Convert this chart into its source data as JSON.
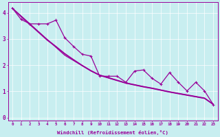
{
  "xlabel": "Windchill (Refroidissement éolien,°C)",
  "bg_color": "#c8eef0",
  "line_color": "#990099",
  "xlim": [
    -0.5,
    23.5
  ],
  "ylim": [
    -0.1,
    4.4
  ],
  "xticks": [
    0,
    1,
    2,
    3,
    4,
    5,
    6,
    7,
    8,
    9,
    10,
    11,
    12,
    13,
    14,
    15,
    16,
    17,
    18,
    19,
    20,
    21,
    22,
    23
  ],
  "yticks": [
    0,
    1,
    2,
    3,
    4
  ],
  "zigzag": [
    4.18,
    3.75,
    3.58,
    3.58,
    3.58,
    3.72,
    3.05,
    2.72,
    2.42,
    2.35,
    1.58,
    1.58,
    1.58,
    1.35,
    1.78,
    1.82,
    1.5,
    1.28,
    1.72,
    1.35,
    1.02,
    1.35,
    1.02,
    0.5
  ],
  "line1": [
    4.18,
    3.88,
    3.58,
    3.28,
    2.98,
    2.68,
    2.38,
    2.18,
    1.98,
    1.78,
    1.62,
    1.52,
    1.42,
    1.32,
    1.25,
    1.18,
    1.12,
    1.05,
    0.98,
    0.92,
    0.86,
    0.8,
    0.74,
    0.5
  ],
  "line2": [
    4.18,
    3.88,
    3.58,
    3.28,
    2.98,
    2.72,
    2.45,
    2.22,
    2.0,
    1.8,
    1.63,
    1.53,
    1.43,
    1.33,
    1.26,
    1.19,
    1.13,
    1.06,
    0.99,
    0.93,
    0.87,
    0.81,
    0.75,
    0.52
  ],
  "line3": [
    4.18,
    3.85,
    3.55,
    3.25,
    2.95,
    2.7,
    2.43,
    2.2,
    1.98,
    1.78,
    1.61,
    1.51,
    1.41,
    1.31,
    1.24,
    1.17,
    1.11,
    1.04,
    0.97,
    0.91,
    0.85,
    0.79,
    0.73,
    0.5
  ]
}
